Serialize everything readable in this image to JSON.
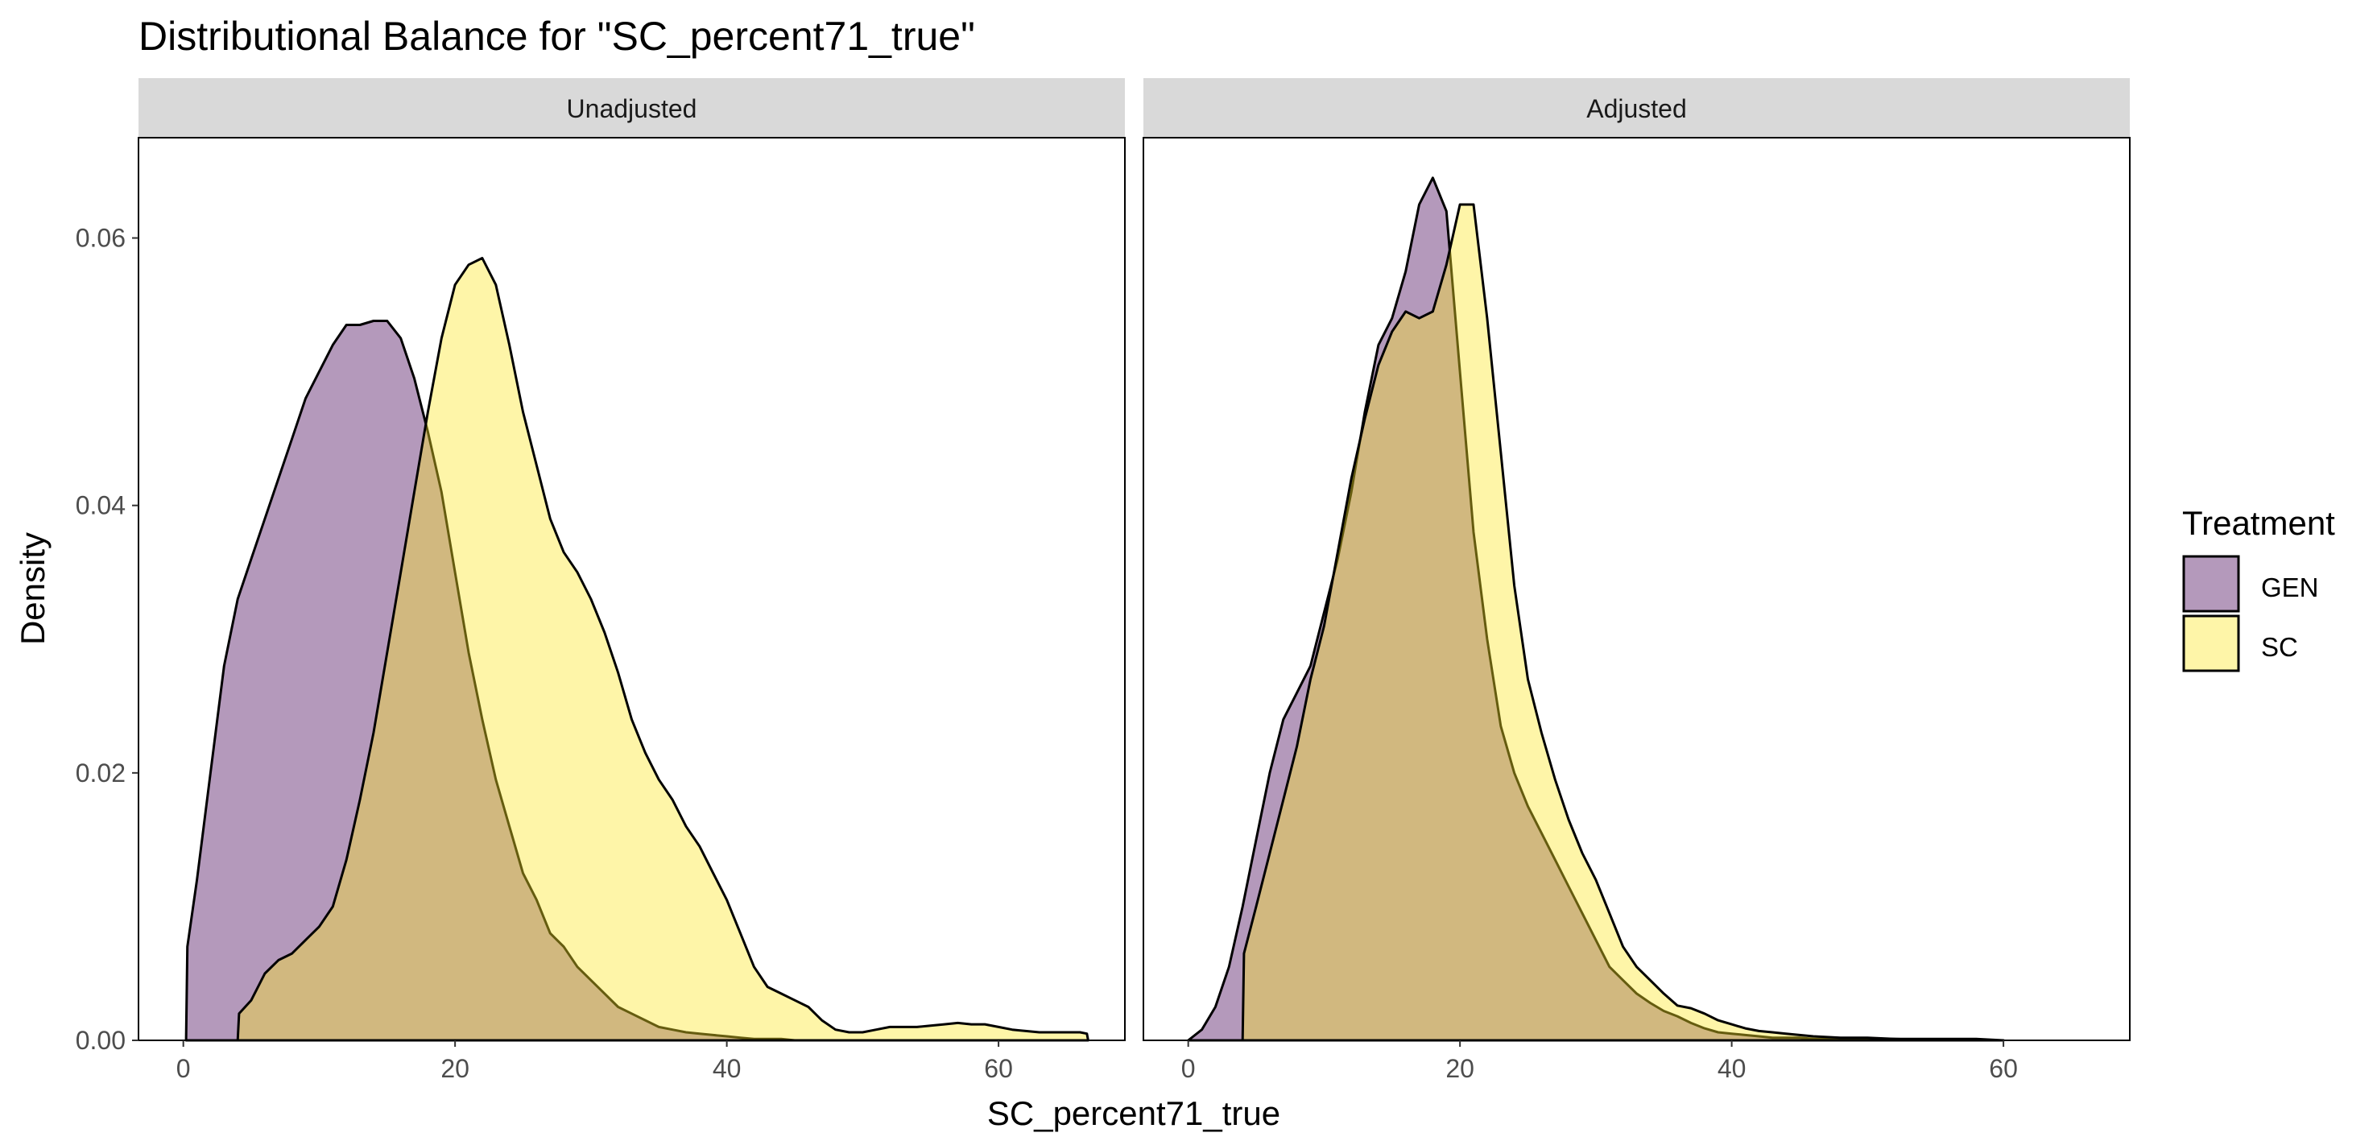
{
  "chart_data": {
    "type": "area",
    "subtype": "density",
    "title": "Distributional Balance for \"SC_percent71_true\"",
    "xlabel": "SC_percent71_true",
    "ylabel": "Density",
    "xlim": [
      -3.3,
      69.3
    ],
    "ylim": [
      0,
      0.0675
    ],
    "x_ticks": [
      0,
      20,
      40,
      60
    ],
    "y_ticks": [
      0.0,
      0.02,
      0.04,
      0.06
    ],
    "y_tick_labels": [
      "0.00",
      "0.02",
      "0.04",
      "0.06"
    ],
    "grid": false,
    "legend": {
      "title": "Treatment",
      "position": "right",
      "entries": [
        "GEN",
        "SC"
      ]
    },
    "colors": {
      "GEN": "#440154",
      "SC": "#fde725",
      "fill_alpha": 0.4,
      "outline": "#000000",
      "strip_bg": "#d9d9d9"
    },
    "panels": [
      {
        "label": "Unadjusted",
        "series": [
          {
            "name": "GEN",
            "x": [
              0.2,
              0.3,
              1,
              2,
              3,
              4,
              5,
              6,
              7,
              8,
              9,
              10,
              11,
              12,
              13,
              14,
              15,
              16,
              17,
              18,
              19,
              20,
              21,
              22,
              23,
              24,
              25,
              26,
              27,
              28,
              29,
              30,
              31,
              32,
              33,
              34,
              35,
              36,
              37,
              38,
              39,
              40,
              41,
              42,
              43,
              44,
              45,
              46
            ],
            "y": [
              0.0,
              0.007,
              0.012,
              0.02,
              0.028,
              0.033,
              0.036,
              0.039,
              0.042,
              0.045,
              0.048,
              0.05,
              0.052,
              0.0535,
              0.0535,
              0.0538,
              0.0538,
              0.0525,
              0.0495,
              0.0455,
              0.041,
              0.035,
              0.029,
              0.024,
              0.0195,
              0.016,
              0.0125,
              0.0105,
              0.008,
              0.007,
              0.0055,
              0.0045,
              0.0035,
              0.0025,
              0.002,
              0.0015,
              0.001,
              0.0008,
              0.0006,
              0.0005,
              0.0004,
              0.0003,
              0.0002,
              0.0001,
              0.0001,
              0.0001,
              0.0,
              0.0
            ]
          },
          {
            "name": "SC",
            "x": [
              4,
              4.1,
              5,
              6,
              7,
              8,
              9,
              10,
              11,
              12,
              13,
              14,
              15,
              16,
              17,
              18,
              19,
              20,
              21,
              22,
              23,
              24,
              25,
              26,
              27,
              28,
              29,
              30,
              31,
              32,
              33,
              34,
              35,
              36,
              37,
              38,
              39,
              40,
              41,
              42,
              43,
              44,
              45,
              46,
              47,
              48,
              49,
              50,
              51,
              52,
              53,
              54,
              55,
              56,
              57,
              58,
              59,
              60,
              61,
              62,
              63,
              64,
              65,
              66,
              66.5,
              66.6
            ],
            "y": [
              0.0,
              0.002,
              0.003,
              0.005,
              0.006,
              0.0065,
              0.0075,
              0.0085,
              0.01,
              0.0135,
              0.018,
              0.023,
              0.029,
              0.035,
              0.041,
              0.047,
              0.0525,
              0.0565,
              0.058,
              0.0585,
              0.0565,
              0.052,
              0.047,
              0.043,
              0.039,
              0.0365,
              0.035,
              0.033,
              0.0305,
              0.0275,
              0.024,
              0.0215,
              0.0195,
              0.018,
              0.016,
              0.0145,
              0.0125,
              0.0105,
              0.008,
              0.0055,
              0.004,
              0.0035,
              0.003,
              0.0025,
              0.0015,
              0.0008,
              0.0006,
              0.0006,
              0.0008,
              0.001,
              0.001,
              0.001,
              0.0011,
              0.0012,
              0.0013,
              0.0012,
              0.0012,
              0.001,
              0.0008,
              0.0007,
              0.0006,
              0.0006,
              0.0006,
              0.0006,
              0.0005,
              0.0
            ]
          }
        ]
      },
      {
        "label": "Adjusted",
        "series": [
          {
            "name": "GEN",
            "x": [
              0,
              1,
              2,
              3,
              4,
              5,
              6,
              7,
              8,
              9,
              10,
              11,
              12,
              13,
              14,
              15,
              16,
              17,
              18,
              19,
              20,
              21,
              22,
              23,
              24,
              25,
              26,
              27,
              28,
              29,
              30,
              31,
              32,
              33,
              34,
              35,
              36,
              37,
              38,
              39,
              40,
              41,
              42,
              43,
              44,
              45,
              46,
              48,
              50,
              52,
              55,
              58
            ],
            "y": [
              0.0,
              0.0008,
              0.0025,
              0.0055,
              0.01,
              0.015,
              0.02,
              0.024,
              0.026,
              0.028,
              0.032,
              0.036,
              0.041,
              0.047,
              0.052,
              0.054,
              0.0575,
              0.0625,
              0.0645,
              0.062,
              0.05,
              0.038,
              0.03,
              0.0235,
              0.02,
              0.0175,
              0.0155,
              0.0135,
              0.0115,
              0.0095,
              0.0075,
              0.0055,
              0.0045,
              0.0035,
              0.0028,
              0.0022,
              0.0018,
              0.0013,
              0.0009,
              0.0006,
              0.0005,
              0.0004,
              0.0003,
              0.0002,
              0.0002,
              0.0002,
              0.0001,
              0.0001,
              0.0001,
              0.0001,
              0.0,
              0.0
            ]
          },
          {
            "name": "SC",
            "x": [
              4,
              4.1,
              5,
              6,
              7,
              8,
              9,
              10,
              11,
              12,
              13,
              14,
              15,
              16,
              17,
              18,
              19,
              20,
              21,
              22,
              23,
              24,
              25,
              26,
              27,
              28,
              29,
              30,
              31,
              32,
              33,
              34,
              35,
              36,
              37,
              38,
              39,
              40,
              41,
              42,
              43,
              44,
              45,
              46,
              48,
              50,
              52,
              55,
              58,
              60
            ],
            "y": [
              0.0,
              0.0065,
              0.01,
              0.014,
              0.018,
              0.022,
              0.027,
              0.031,
              0.0365,
              0.042,
              0.0465,
              0.0505,
              0.053,
              0.0545,
              0.054,
              0.0545,
              0.058,
              0.0625,
              0.0625,
              0.054,
              0.044,
              0.034,
              0.027,
              0.023,
              0.0195,
              0.0165,
              0.014,
              0.012,
              0.0095,
              0.007,
              0.0055,
              0.0045,
              0.0035,
              0.0026,
              0.0024,
              0.002,
              0.0015,
              0.0012,
              0.0009,
              0.0007,
              0.0006,
              0.0005,
              0.0004,
              0.0003,
              0.0002,
              0.0002,
              0.0001,
              0.0001,
              0.0001,
              0.0
            ]
          }
        ]
      }
    ]
  }
}
